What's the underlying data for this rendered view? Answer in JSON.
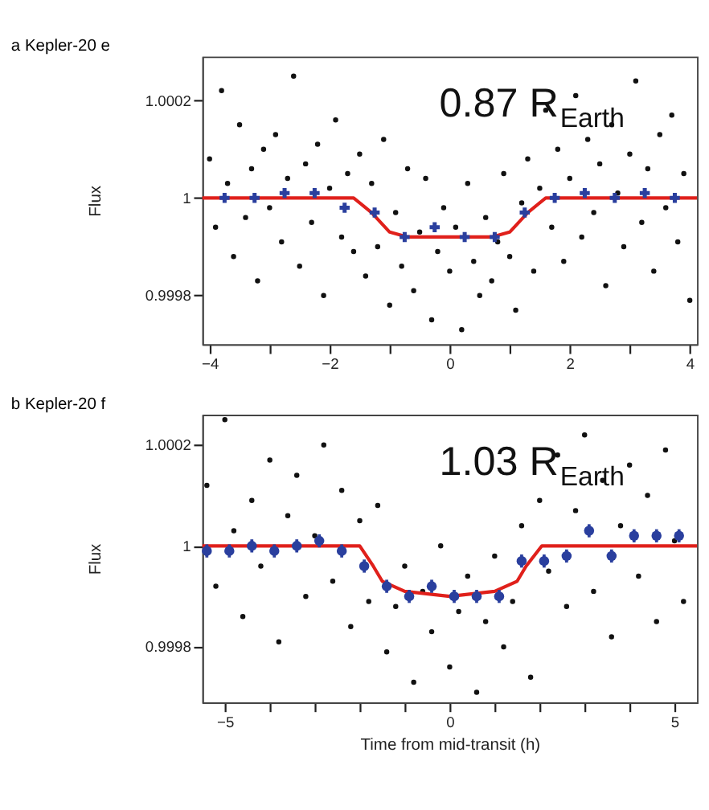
{
  "chart_data": [
    {
      "type": "scatter",
      "title": "a Kepler-20 e",
      "ylabel": "Flux",
      "xlim": [
        -4.12,
        4.12
      ],
      "ylim": [
        0.9997,
        1.00029
      ],
      "grid": false,
      "marker": "circle",
      "xticks": [
        -4,
        {
          "value": -3,
          "label": null
        },
        -2,
        {
          "value": -1,
          "label": null
        },
        0,
        {
          "value": 1,
          "label": null
        },
        2,
        {
          "value": 3,
          "label": null
        },
        4
      ],
      "yticks": [
        0.9998,
        1,
        1.0002
      ],
      "annotations": [
        "0.87 R$_{Earth}$"
      ],
      "series": [
        {
          "type": "scatter",
          "color": "#111111",
          "x": [
            -4.0,
            -3.9,
            -3.8,
            -3.7,
            -3.6,
            -3.5,
            -3.4,
            -3.3,
            -3.2,
            -3.1,
            -3.0,
            -2.9,
            -2.8,
            -2.7,
            -2.6,
            -2.5,
            -2.4,
            -2.3,
            -2.2,
            -2.1,
            -2.0,
            -1.9,
            -1.8,
            -1.7,
            -1.6,
            -1.5,
            -1.4,
            -1.3,
            -1.2,
            -1.1,
            -1.0,
            -0.9,
            -0.8,
            -0.7,
            -0.6,
            -0.5,
            -0.4,
            -0.3,
            -0.2,
            -0.1,
            0.0,
            0.1,
            0.2,
            0.3,
            0.4,
            0.5,
            0.6,
            0.7,
            0.8,
            0.9,
            1.0,
            1.1,
            1.2,
            1.3,
            1.4,
            1.5,
            1.6,
            1.7,
            1.8,
            1.9,
            2.0,
            2.1,
            2.2,
            2.3,
            2.4,
            2.5,
            2.6,
            2.7,
            2.8,
            2.9,
            3.0,
            3.1,
            3.2,
            3.3,
            3.4,
            3.5,
            3.6,
            3.7,
            3.8,
            3.9,
            4.0
          ],
          "values": [
            1.00008,
            0.99994,
            1.00022,
            1.00003,
            0.99988,
            1.00015,
            0.99996,
            1.00006,
            0.99983,
            1.0001,
            0.99998,
            1.00013,
            0.99991,
            1.00004,
            1.00025,
            0.99986,
            1.00007,
            0.99995,
            1.00011,
            0.9998,
            1.00002,
            1.00016,
            0.99992,
            1.00005,
            0.99989,
            1.00009,
            0.99984,
            1.00003,
            0.9999,
            1.00012,
            0.99978,
            0.99997,
            0.99986,
            1.00006,
            0.99981,
            0.99993,
            1.00004,
            0.99975,
            0.99989,
            0.99998,
            0.99985,
            0.99994,
            0.99973,
            1.00003,
            0.99987,
            0.9998,
            0.99996,
            0.99983,
            0.99991,
            1.00005,
            0.99988,
            0.99977,
            0.99999,
            1.00008,
            0.99985,
            1.00002,
            1.00018,
            0.99994,
            1.0001,
            0.99987,
            1.00004,
            1.00021,
            0.99992,
            1.00012,
            0.99997,
            1.00007,
            0.99982,
            1.00015,
            1.00001,
            0.9999,
            1.00009,
            1.00024,
            0.99995,
            1.00006,
            0.99985,
            1.00013,
            0.99998,
            1.00017,
            0.99991,
            1.00005,
            0.99979
          ]
        },
        {
          "type": "line",
          "marker": "none",
          "line_style": "solid",
          "color": "#e0201b",
          "x": [
            -4.12,
            -1.6,
            -1.3,
            -1.0,
            -0.7,
            0.7,
            1.0,
            1.3,
            1.6,
            4.12
          ],
          "values": [
            1,
            1,
            0.99997,
            0.99993,
            0.99992,
            0.99992,
            0.99993,
            0.99997,
            1,
            1
          ]
        },
        {
          "type": "scatter",
          "color": "#2a3f9e",
          "marker": "cross",
          "x": [
            -3.75,
            -3.25,
            -2.75,
            -2.25,
            -1.75,
            -1.25,
            -0.75,
            -0.25,
            0.25,
            0.75,
            1.25,
            1.75,
            2.25,
            2.75,
            3.25,
            3.75
          ],
          "values": [
            1.0,
            1.0,
            1.00001,
            1.00001,
            0.99998,
            0.99997,
            0.99992,
            0.99994,
            0.99992,
            0.99992,
            0.99997,
            1.0,
            1.00001,
            1.0,
            1.00001,
            1.0
          ],
          "errors": [
            6e-06,
            6e-06,
            6e-06,
            6e-06,
            6e-06,
            6e-06,
            6e-06,
            6e-06,
            6e-06,
            6e-06,
            6e-06,
            6e-06,
            6e-06,
            6e-06,
            6e-06,
            6e-06
          ]
        }
      ]
    },
    {
      "type": "scatter",
      "title": "b Kepler-20 f",
      "ylabel": "Flux",
      "xlabel": "Time from mid-transit (h)",
      "xlim": [
        -5.5,
        5.5
      ],
      "ylim": [
        0.99969,
        1.00026
      ],
      "grid": false,
      "marker": "circle",
      "xticks": [
        -5,
        {
          "value": -4,
          "label": null
        },
        {
          "value": -3,
          "label": null
        },
        {
          "value": -2,
          "label": null
        },
        {
          "value": -1,
          "label": null
        },
        0,
        {
          "value": 1,
          "label": null
        },
        {
          "value": 2,
          "label": null
        },
        {
          "value": 3,
          "label": null
        },
        {
          "value": 4,
          "label": null
        },
        5
      ],
      "yticks": [
        0.9998,
        1,
        1.0002
      ],
      "annotations": [
        "1.03 R$_{Earth}$"
      ],
      "series": [
        {
          "type": "scatter",
          "color": "#111111",
          "x": [
            -5.4,
            -5.2,
            -5.0,
            -4.8,
            -4.6,
            -4.4,
            -4.2,
            -4.0,
            -3.8,
            -3.6,
            -3.4,
            -3.2,
            -3.0,
            -2.8,
            -2.6,
            -2.4,
            -2.2,
            -2.0,
            -1.8,
            -1.6,
            -1.4,
            -1.2,
            -1.0,
            -0.8,
            -0.6,
            -0.4,
            -0.2,
            0.0,
            0.2,
            0.4,
            0.6,
            0.8,
            1.0,
            1.2,
            1.4,
            1.6,
            1.8,
            2.0,
            2.2,
            2.4,
            2.6,
            2.8,
            3.0,
            3.2,
            3.4,
            3.6,
            3.8,
            4.0,
            4.2,
            4.4,
            4.6,
            4.8,
            5.0,
            5.2
          ],
          "values": [
            1.00012,
            0.99992,
            1.00025,
            1.00003,
            0.99986,
            1.00009,
            0.99996,
            1.00017,
            0.99981,
            1.00006,
            1.00014,
            0.9999,
            1.00002,
            1.0002,
            0.99993,
            1.00011,
            0.99984,
            1.00005,
            0.99989,
            1.00008,
            0.99979,
            0.99988,
            0.99996,
            0.99973,
            0.99991,
            0.99983,
            1,
            0.99976,
            0.99987,
            0.99994,
            0.99971,
            0.99985,
            0.99998,
            0.9998,
            0.99989,
            1.00004,
            0.99974,
            1.00009,
            0.99995,
            1.00018,
            0.99988,
            1.00007,
            1.00022,
            0.99991,
            1.00013,
            0.99982,
            1.00004,
            1.00016,
            0.99994,
            1.0001,
            0.99985,
            1.00019,
            1.00001,
            0.99989
          ]
        },
        {
          "type": "line",
          "marker": "none",
          "line_style": "solid",
          "color": "#e0201b",
          "x": [
            -5.5,
            -2.0,
            -1.7,
            -1.5,
            -1.0,
            0,
            1.0,
            1.5,
            1.7,
            2.05,
            5.5
          ],
          "values": [
            1,
            1,
            0.99996,
            0.99993,
            0.99991,
            0.9999,
            0.99991,
            0.99993,
            0.99996,
            1,
            1
          ]
        },
        {
          "type": "scatter",
          "color": "#2a3f9e",
          "x": [
            -5.4,
            -4.9,
            -4.4,
            -3.9,
            -3.4,
            -2.9,
            -2.4,
            -1.9,
            -1.4,
            -0.9,
            -0.4,
            0.1,
            0.6,
            1.1,
            1.6,
            2.1,
            2.6,
            3.1,
            3.6,
            4.1,
            4.6,
            5.1
          ],
          "values": [
            0.99999,
            0.99999,
            1.0,
            0.99999,
            1.0,
            1.00001,
            0.99999,
            0.99996,
            0.99992,
            0.9999,
            0.99992,
            0.9999,
            0.9999,
            0.9999,
            0.99997,
            0.99997,
            0.99998,
            1.00003,
            0.99998,
            1.00002,
            1.00002,
            1.00002
          ],
          "errors": [
            1.3e-05,
            1.3e-05,
            1.3e-05,
            1.3e-05,
            1.3e-05,
            1.3e-05,
            1.3e-05,
            1.3e-05,
            1.3e-05,
            1.3e-05,
            1.3e-05,
            1.3e-05,
            1.3e-05,
            1.3e-05,
            1.3e-05,
            1.3e-05,
            1.3e-05,
            1.3e-05,
            1.3e-05,
            1.3e-05,
            1.3e-05,
            1.3e-05
          ]
        }
      ]
    }
  ]
}
